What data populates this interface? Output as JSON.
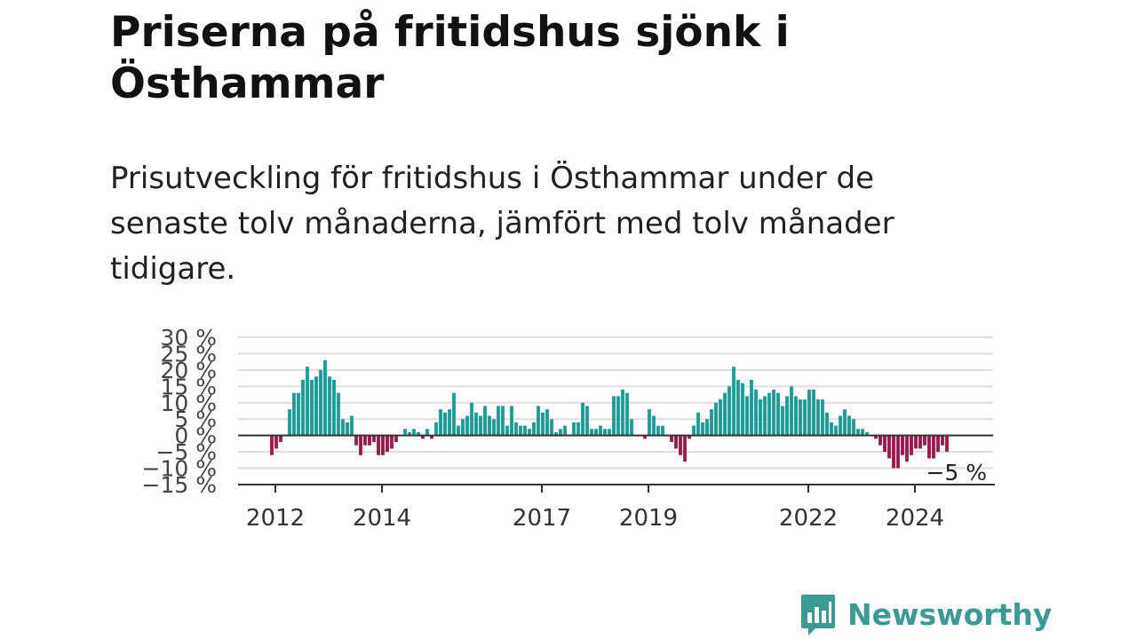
{
  "title": "Priserna på fritidshus sjönk i Östhammar",
  "subtitle": "Prisutveckling för fritidshus i Östhammar under de senaste tolv månaderna, jämfört med tolv månader tidigare.",
  "logo": {
    "text": "Newsworthy",
    "icon": "newsworthy-logo-icon",
    "color": "#3a9a94"
  },
  "chart_data": {
    "type": "bar",
    "title": "",
    "xlabel": "",
    "ylabel": "",
    "ylim": [
      -15,
      30
    ],
    "y_ticks": [
      30,
      25,
      20,
      15,
      10,
      5,
      0,
      -5,
      -10,
      -15
    ],
    "y_tick_labels": [
      "30 %",
      "25 %",
      "20 %",
      "15 %",
      "10 %",
      "5 %",
      "0 %",
      "−5 %",
      "−10 %",
      "−15 %"
    ],
    "x_ticks": [
      {
        "label": "2012",
        "value": "2012-01"
      },
      {
        "label": "2014",
        "value": "2014-01"
      },
      {
        "label": "2017",
        "value": "2017-01"
      },
      {
        "label": "2019",
        "value": "2019-01"
      },
      {
        "label": "2022",
        "value": "2022-01"
      },
      {
        "label": "2024",
        "value": "2024-01"
      }
    ],
    "grid": true,
    "positive_color": "#159e96",
    "negative_color": "#a5124a",
    "start_period": "2012-01",
    "frequency": "monthly",
    "last_value_label": "−5 %",
    "values": [
      -6,
      -4,
      -2,
      0,
      8,
      13,
      13,
      17,
      21,
      17,
      18,
      20,
      23,
      18,
      17,
      13,
      5,
      4,
      6,
      -3,
      -6,
      -3,
      -3,
      -2,
      -6,
      -6,
      -5,
      -4,
      -2,
      0,
      2,
      1,
      2,
      1,
      -1,
      2,
      -1,
      4,
      8,
      7,
      8,
      13,
      3,
      5,
      6,
      10,
      7,
      6,
      9,
      6,
      5,
      9,
      9,
      3,
      9,
      4,
      3,
      3,
      2,
      4,
      9,
      7,
      8,
      5,
      1,
      2,
      3,
      0,
      4,
      4,
      10,
      9,
      2,
      2,
      3,
      2,
      2,
      12,
      12,
      14,
      13,
      5,
      0,
      0,
      -1,
      8,
      6,
      3,
      3,
      0,
      -2,
      -4,
      -6,
      -8,
      -1,
      3,
      7,
      4,
      5,
      8,
      10,
      11,
      13,
      15,
      21,
      17,
      16,
      12,
      17,
      14,
      11,
      12,
      13,
      14,
      13,
      9,
      12,
      15,
      12,
      11,
      11,
      14,
      14,
      11,
      11,
      7,
      4,
      3,
      6,
      8,
      6,
      5,
      2,
      2,
      1,
      0,
      -1,
      -3,
      -5,
      -7,
      -10,
      -10,
      -6,
      -8,
      -6,
      -4,
      -4,
      -3,
      -7,
      -7,
      -5,
      -3,
      -5
    ]
  }
}
